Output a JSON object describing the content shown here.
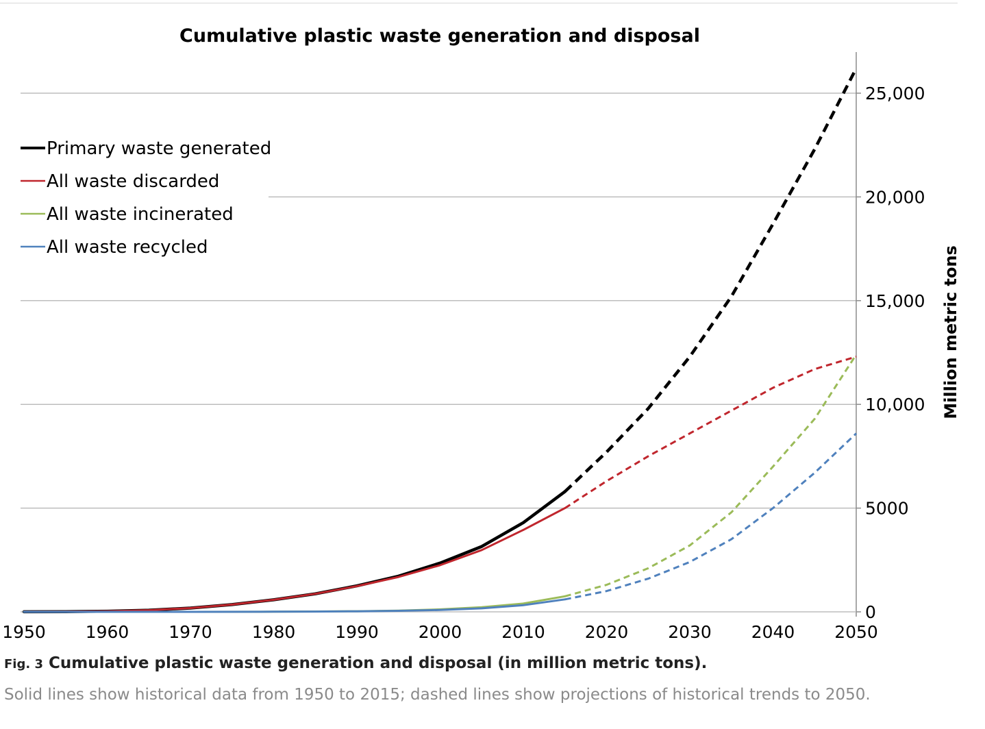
{
  "figure": {
    "label": "Fig. 3",
    "title": "Cumulative plastic waste generation and disposal (in million metric tons).",
    "description": "Solid lines show historical data from 1950 to 2015; dashed lines show projections of historical trends to 2050."
  },
  "chart_data": {
    "type": "line",
    "title": "Cumulative plastic waste generation and disposal",
    "xlabel": "",
    "ylabel": "Million metric tons",
    "xlim": [
      1950,
      2050
    ],
    "ylim": [
      0,
      27000
    ],
    "x_ticks": [
      1950,
      1960,
      1970,
      1980,
      1990,
      2000,
      2010,
      2020,
      2030,
      2040,
      2050
    ],
    "y_ticks": [
      0,
      5000,
      10000,
      15000,
      20000,
      25000
    ],
    "y_tick_labels": [
      "0",
      "5000",
      "10,000",
      "15,000",
      "20,000",
      "25,000"
    ],
    "y_axis_position": "right",
    "grid": "horizontal",
    "legend_position": "top-left",
    "historical_range": [
      1950,
      2015
    ],
    "projection_range": [
      2015,
      2050
    ],
    "series": [
      {
        "name": "Primary waste generated",
        "color": "#000000",
        "x": [
          1950,
          1955,
          1960,
          1965,
          1970,
          1975,
          1980,
          1985,
          1990,
          1995,
          2000,
          2005,
          2010,
          2015,
          2020,
          2025,
          2030,
          2035,
          2040,
          2045,
          2050
        ],
        "values": [
          2,
          10,
          30,
          80,
          180,
          350,
          580,
          870,
          1250,
          1720,
          2350,
          3150,
          4300,
          5800,
          7700,
          9800,
          12300,
          15200,
          18700,
          22300,
          26200
        ]
      },
      {
        "name": "All waste discarded",
        "color": "#c0262d",
        "x": [
          1950,
          1955,
          1960,
          1965,
          1970,
          1975,
          1980,
          1985,
          1990,
          1995,
          2000,
          2005,
          2010,
          2015,
          2020,
          2025,
          2030,
          2035,
          2040,
          2045,
          2050
        ],
        "values": [
          2,
          10,
          30,
          80,
          180,
          350,
          580,
          870,
          1240,
          1680,
          2250,
          2980,
          3950,
          5000,
          6300,
          7500,
          8600,
          9700,
          10800,
          11700,
          12300
        ]
      },
      {
        "name": "All waste incinerated",
        "color": "#9bbb59",
        "x": [
          1950,
          1960,
          1970,
          1980,
          1985,
          1990,
          1995,
          2000,
          2005,
          2010,
          2015,
          2020,
          2025,
          2030,
          2035,
          2040,
          2045,
          2050
        ],
        "values": [
          0,
          0,
          0,
          5,
          15,
          30,
          60,
          120,
          220,
          400,
          750,
          1300,
          2100,
          3200,
          4800,
          7000,
          9300,
          12400
        ]
      },
      {
        "name": "All waste recycled",
        "color": "#4f81bd",
        "x": [
          1950,
          1960,
          1970,
          1980,
          1985,
          1990,
          1995,
          2000,
          2005,
          2010,
          2015,
          2020,
          2025,
          2030,
          2035,
          2040,
          2045,
          2050
        ],
        "values": [
          0,
          0,
          0,
          5,
          12,
          25,
          50,
          90,
          170,
          320,
          600,
          1000,
          1600,
          2400,
          3500,
          5000,
          6700,
          8600
        ]
      }
    ]
  }
}
